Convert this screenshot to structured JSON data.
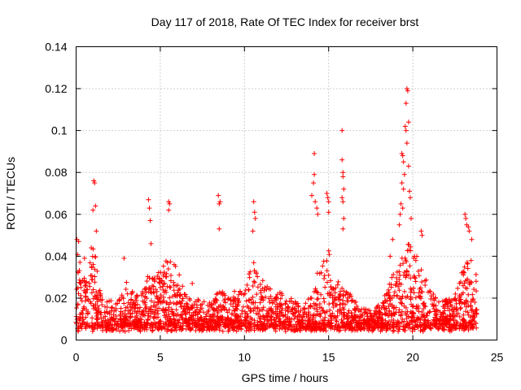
{
  "chart_data": {
    "type": "scatter",
    "title": "Day 117 of 2018, Rate Of TEC Index for receiver brst",
    "xlabel": "GPS time / hours",
    "ylabel": "ROTI / TECUs",
    "xlim": [
      0,
      25
    ],
    "ylim": [
      0,
      0.14
    ],
    "xticks": [
      0,
      5,
      10,
      15,
      20,
      25
    ],
    "xtick_labels": [
      "0",
      "5",
      "10",
      "15",
      "20",
      "25"
    ],
    "yticks": [
      0,
      0.02,
      0.04,
      0.06,
      0.08,
      0.1,
      0.12,
      0.14
    ],
    "ytick_labels": [
      "0",
      "0.02",
      "0.04",
      "0.06",
      "0.08",
      "0.1",
      "0.12",
      "0.14"
    ],
    "grid": true,
    "marker": "+",
    "color": "#ff0000",
    "x_data_range": [
      0,
      23.8
    ],
    "envelope": {
      "hours": [
        0,
        0.3,
        0.6,
        1.0,
        1.5,
        2.0,
        2.5,
        3.0,
        3.5,
        4.0,
        4.3,
        4.5,
        5.0,
        5.5,
        6.0,
        6.5,
        7.0,
        7.5,
        8.0,
        8.5,
        9.0,
        9.5,
        10.0,
        10.5,
        11.0,
        11.5,
        12.0,
        12.5,
        13.0,
        13.5,
        14.0,
        14.5,
        15.0,
        15.5,
        16.0,
        16.5,
        17.0,
        17.5,
        18.0,
        18.5,
        19.0,
        19.5,
        20.0,
        20.5,
        21.0,
        21.5,
        22.0,
        22.5,
        23.0,
        23.5,
        23.8
      ],
      "typical_max": [
        0.045,
        0.035,
        0.028,
        0.048,
        0.022,
        0.02,
        0.018,
        0.028,
        0.022,
        0.025,
        0.035,
        0.03,
        0.035,
        0.04,
        0.035,
        0.022,
        0.018,
        0.022,
        0.018,
        0.025,
        0.022,
        0.025,
        0.03,
        0.038,
        0.03,
        0.025,
        0.025,
        0.022,
        0.02,
        0.015,
        0.028,
        0.035,
        0.045,
        0.03,
        0.025,
        0.02,
        0.015,
        0.015,
        0.018,
        0.025,
        0.035,
        0.048,
        0.045,
        0.035,
        0.025,
        0.022,
        0.02,
        0.022,
        0.035,
        0.04,
        0.03
      ]
    },
    "spikes": [
      {
        "x": 0.05,
        "y": 0.048
      },
      {
        "x": 0.15,
        "y": 0.047
      },
      {
        "x": 1.05,
        "y": 0.076
      },
      {
        "x": 1.1,
        "y": 0.075
      },
      {
        "x": 1.15,
        "y": 0.064
      },
      {
        "x": 1.0,
        "y": 0.062
      },
      {
        "x": 1.2,
        "y": 0.052
      },
      {
        "x": 4.3,
        "y": 0.067
      },
      {
        "x": 4.35,
        "y": 0.063
      },
      {
        "x": 4.4,
        "y": 0.057
      },
      {
        "x": 4.45,
        "y": 0.046
      },
      {
        "x": 5.5,
        "y": 0.066
      },
      {
        "x": 5.55,
        "y": 0.065
      },
      {
        "x": 5.5,
        "y": 0.062
      },
      {
        "x": 8.45,
        "y": 0.069
      },
      {
        "x": 8.5,
        "y": 0.065
      },
      {
        "x": 8.55,
        "y": 0.066
      },
      {
        "x": 8.5,
        "y": 0.053
      },
      {
        "x": 10.55,
        "y": 0.066
      },
      {
        "x": 10.6,
        "y": 0.061
      },
      {
        "x": 10.65,
        "y": 0.058
      },
      {
        "x": 10.5,
        "y": 0.052
      },
      {
        "x": 14.15,
        "y": 0.089
      },
      {
        "x": 14.15,
        "y": 0.079
      },
      {
        "x": 14.1,
        "y": 0.075
      },
      {
        "x": 14.0,
        "y": 0.069
      },
      {
        "x": 14.2,
        "y": 0.066
      },
      {
        "x": 14.3,
        "y": 0.063
      },
      {
        "x": 14.35,
        "y": 0.06
      },
      {
        "x": 14.9,
        "y": 0.07
      },
      {
        "x": 14.95,
        "y": 0.068
      },
      {
        "x": 15.0,
        "y": 0.066
      },
      {
        "x": 15.0,
        "y": 0.061
      },
      {
        "x": 15.8,
        "y": 0.1
      },
      {
        "x": 15.8,
        "y": 0.086
      },
      {
        "x": 15.85,
        "y": 0.08
      },
      {
        "x": 15.85,
        "y": 0.078
      },
      {
        "x": 15.9,
        "y": 0.072
      },
      {
        "x": 15.8,
        "y": 0.068
      },
      {
        "x": 15.85,
        "y": 0.066
      },
      {
        "x": 15.9,
        "y": 0.058
      },
      {
        "x": 15.85,
        "y": 0.053
      },
      {
        "x": 19.65,
        "y": 0.12
      },
      {
        "x": 19.7,
        "y": 0.119
      },
      {
        "x": 19.6,
        "y": 0.113
      },
      {
        "x": 19.75,
        "y": 0.104
      },
      {
        "x": 19.55,
        "y": 0.102
      },
      {
        "x": 19.6,
        "y": 0.1
      },
      {
        "x": 19.65,
        "y": 0.094
      },
      {
        "x": 19.35,
        "y": 0.089
      },
      {
        "x": 19.4,
        "y": 0.088
      },
      {
        "x": 19.45,
        "y": 0.085
      },
      {
        "x": 19.75,
        "y": 0.083
      },
      {
        "x": 19.5,
        "y": 0.079
      },
      {
        "x": 19.35,
        "y": 0.075
      },
      {
        "x": 19.45,
        "y": 0.072
      },
      {
        "x": 19.8,
        "y": 0.071
      },
      {
        "x": 19.85,
        "y": 0.068
      },
      {
        "x": 19.3,
        "y": 0.065
      },
      {
        "x": 19.4,
        "y": 0.063
      },
      {
        "x": 19.25,
        "y": 0.06
      },
      {
        "x": 19.9,
        "y": 0.058
      },
      {
        "x": 19.2,
        "y": 0.055
      },
      {
        "x": 20.5,
        "y": 0.052
      },
      {
        "x": 20.55,
        "y": 0.05
      },
      {
        "x": 23.1,
        "y": 0.06
      },
      {
        "x": 23.15,
        "y": 0.058
      },
      {
        "x": 23.2,
        "y": 0.055
      },
      {
        "x": 23.3,
        "y": 0.054
      },
      {
        "x": 23.35,
        "y": 0.052
      },
      {
        "x": 23.5,
        "y": 0.048
      },
      {
        "x": 18.8,
        "y": 0.048
      },
      {
        "x": 18.65,
        "y": 0.04
      },
      {
        "x": 2.85,
        "y": 0.039
      },
      {
        "x": 6.9,
        "y": 0.027
      },
      {
        "x": 0.5,
        "y": 0.039
      },
      {
        "x": 0.9,
        "y": 0.044
      }
    ]
  }
}
